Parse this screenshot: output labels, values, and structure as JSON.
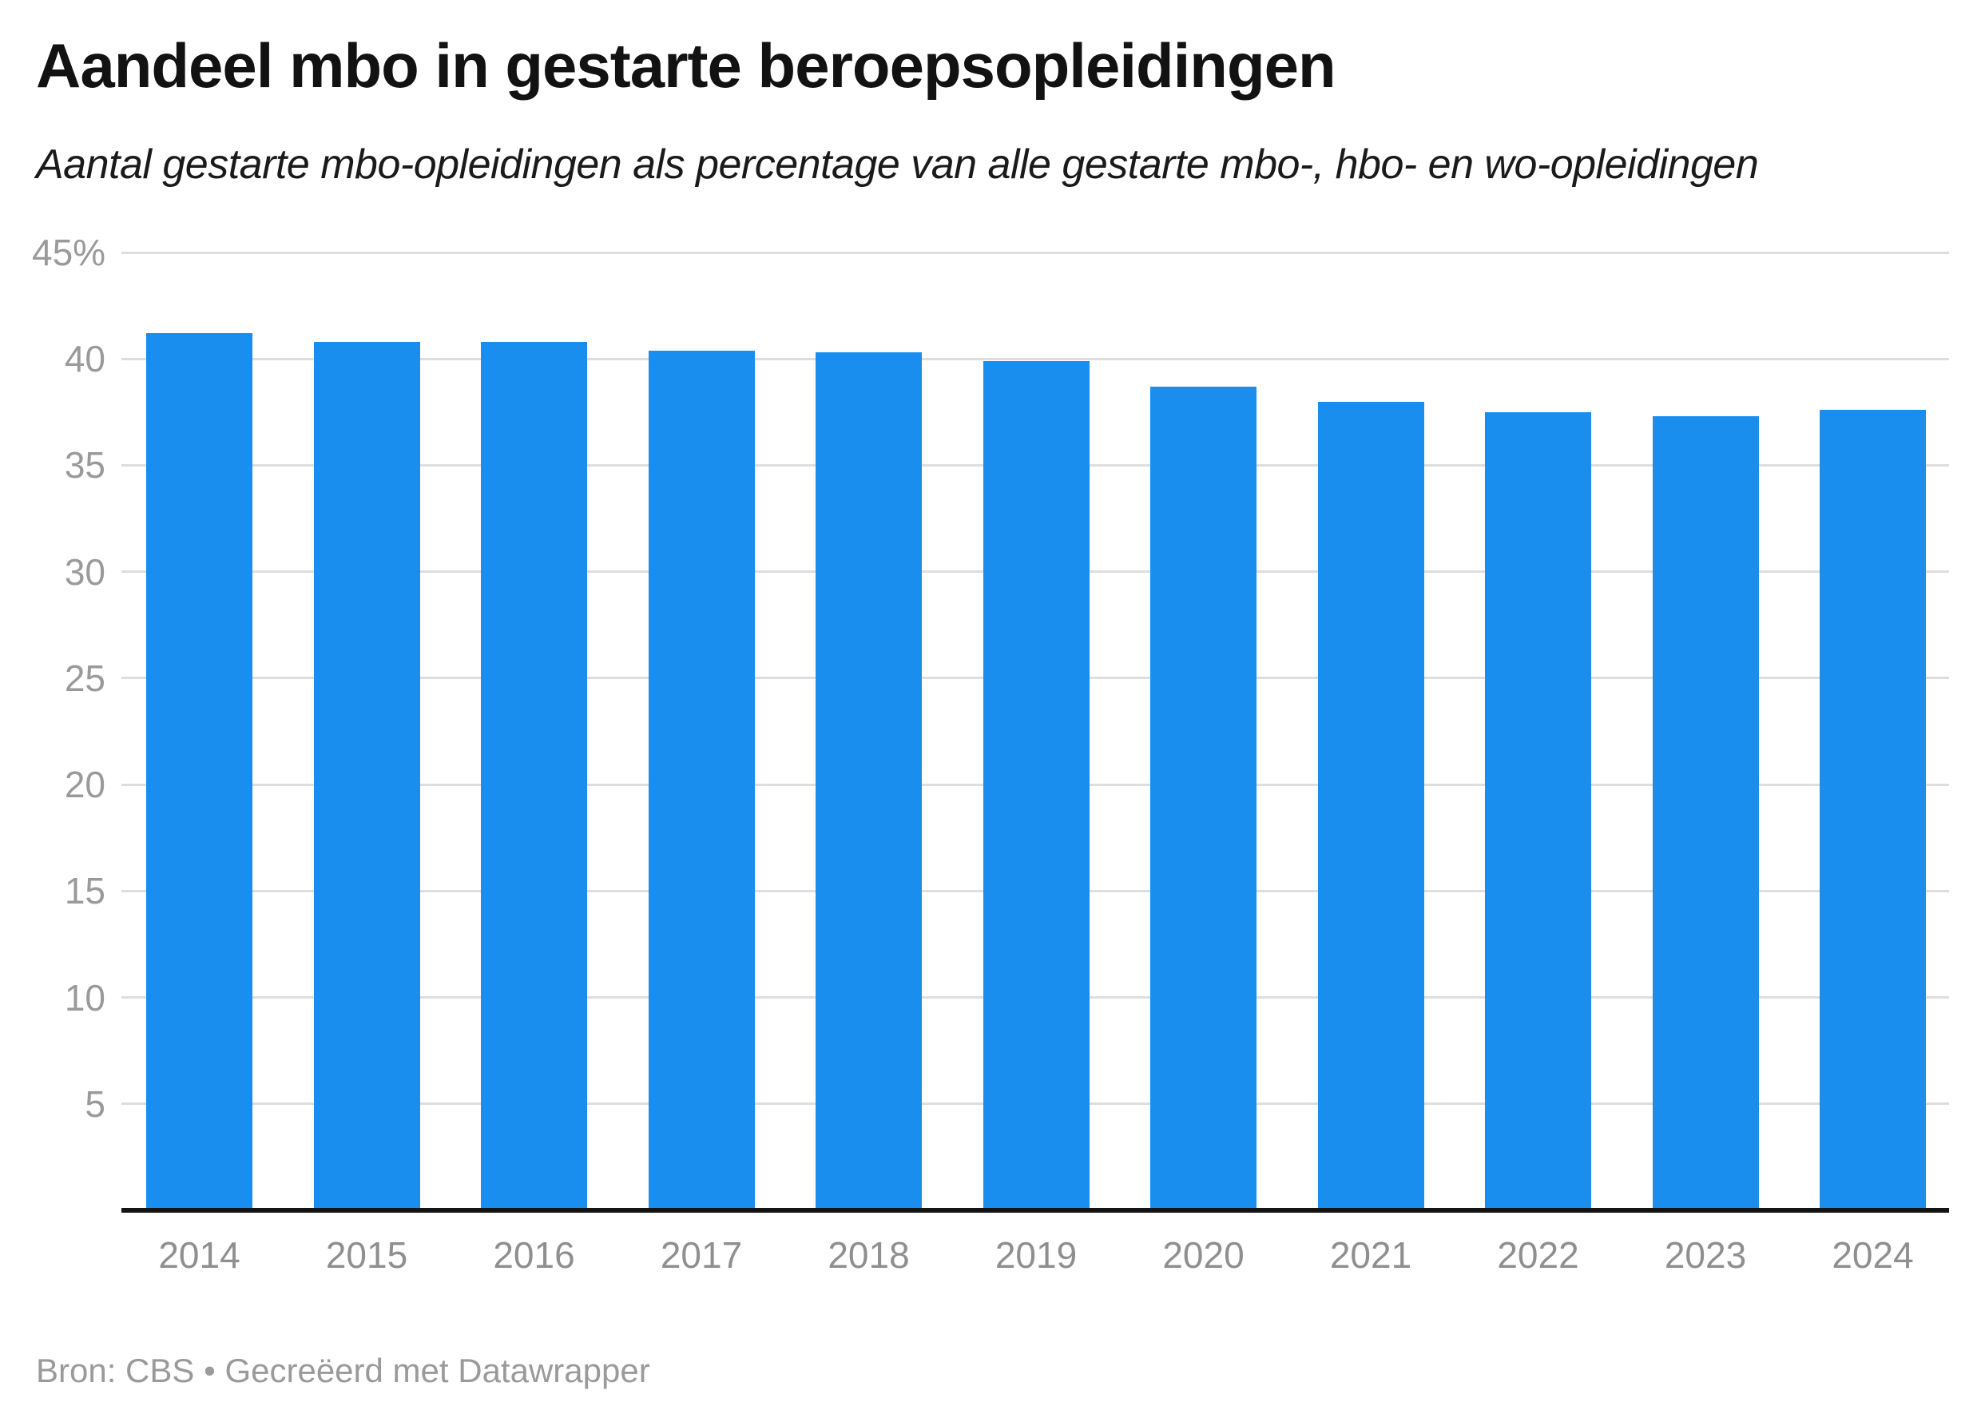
{
  "chart_data": {
    "type": "bar",
    "title": "Aandeel mbo in gestarte beroepsopleidingen",
    "subtitle": "Aantal gestarte mbo-opleidingen als percentage van alle gestarte mbo-, hbo- en wo-opleidingen",
    "source": "Bron: CBS • Gecreëerd met Datawrapper",
    "categories": [
      "2014",
      "2015",
      "2016",
      "2017",
      "2018",
      "2019",
      "2020",
      "2021",
      "2022",
      "2023",
      "2024"
    ],
    "values": [
      41.2,
      40.8,
      40.8,
      40.4,
      40.3,
      39.9,
      38.7,
      38.0,
      37.5,
      37.3,
      37.6
    ],
    "xlabel": "",
    "ylabel": "",
    "ylim": [
      0,
      45
    ],
    "y_ticks": [
      {
        "value": 45,
        "label": "45%"
      },
      {
        "value": 40,
        "label": "40"
      },
      {
        "value": 35,
        "label": "35"
      },
      {
        "value": 30,
        "label": "30"
      },
      {
        "value": 25,
        "label": "25"
      },
      {
        "value": 20,
        "label": "20"
      },
      {
        "value": 15,
        "label": "15"
      },
      {
        "value": 10,
        "label": "10"
      },
      {
        "value": 5,
        "label": "5"
      }
    ],
    "grid": "horizontal",
    "legend": "none"
  },
  "colors": {
    "bar": "#1a8eee",
    "gridline": "#dedede",
    "baseline": "#141414",
    "y_tick_text": "#9a9a9a",
    "x_tick_text": "#8f8f8f",
    "title_text": "#121212",
    "subtitle_text": "#1a1a1a",
    "source_text": "#9a9a9a",
    "background": "#ffffff"
  }
}
